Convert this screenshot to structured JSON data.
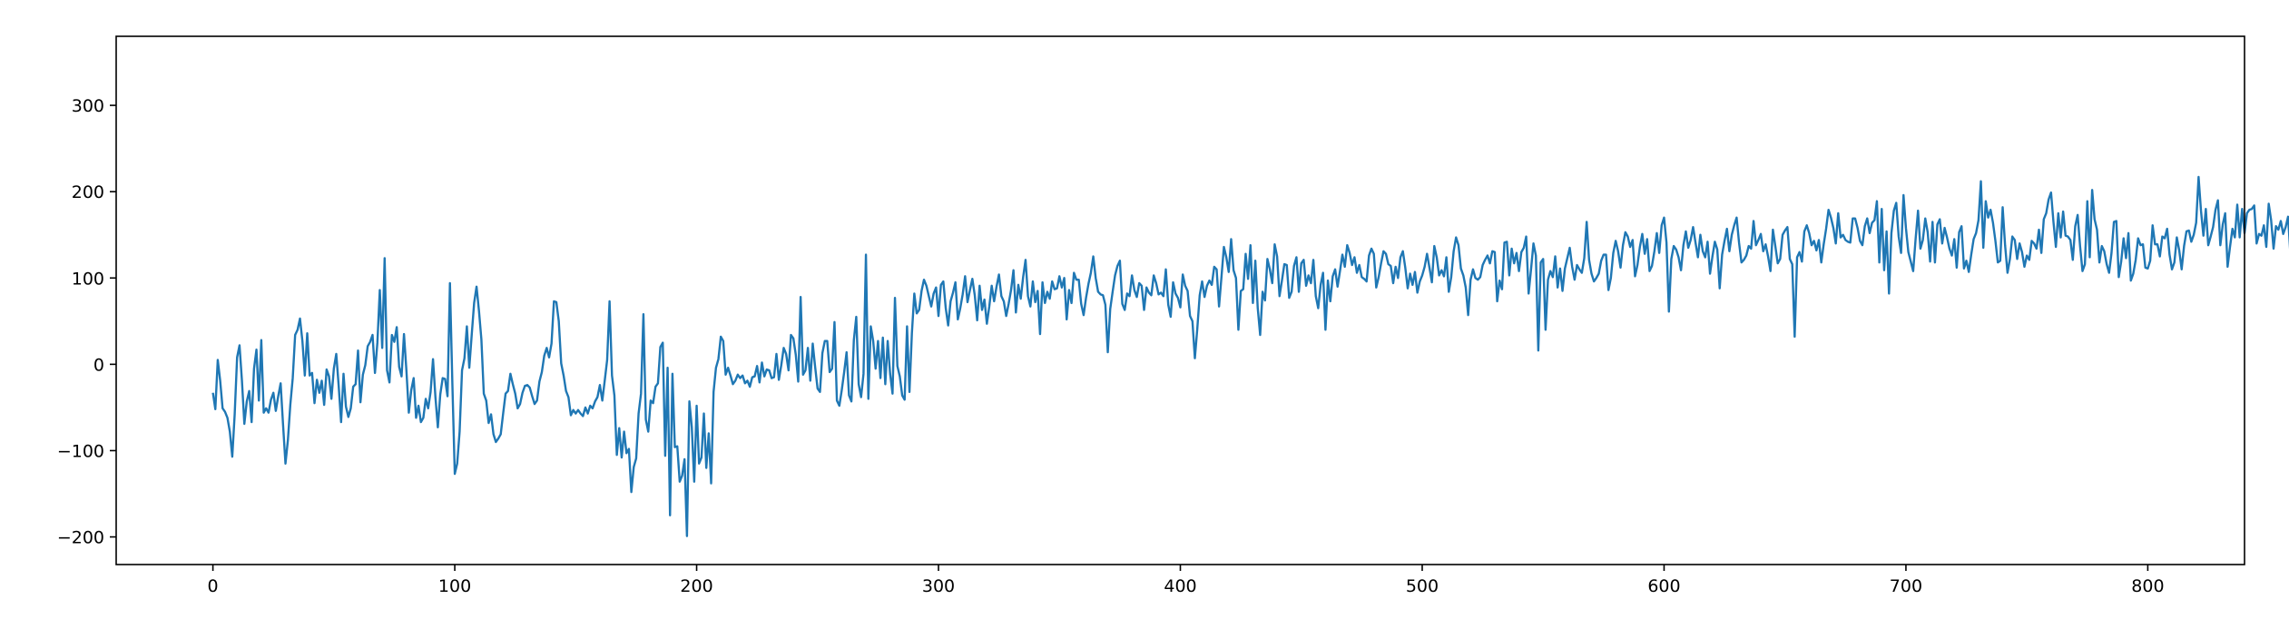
{
  "chart_data": {
    "type": "line",
    "title": "",
    "xlabel": "",
    "ylabel": "",
    "xlim": [
      -40,
      840
    ],
    "ylim": [
      -232,
      380
    ],
    "grid": false,
    "legend": "none",
    "x_ticks": [
      0,
      100,
      200,
      300,
      400,
      500,
      600,
      700,
      800
    ],
    "y_ticks": [
      -200,
      -100,
      0,
      100,
      200,
      300
    ],
    "x_tick_labels": [
      "0",
      "100",
      "200",
      "300",
      "400",
      "500",
      "600",
      "700",
      "800"
    ],
    "y_tick_labels": [
      "−200",
      "−100",
      "0",
      "100",
      "200",
      "300"
    ],
    "series": [
      {
        "color": "#1f77b4",
        "x_start": 0,
        "x_step": 1,
        "values": [
          -33,
          -52,
          5,
          -19,
          -51,
          -55,
          -62,
          -78,
          -107,
          -58,
          8,
          22,
          -19,
          -69,
          -43,
          -31,
          -67,
          -5,
          17,
          -42,
          28,
          -56,
          -51,
          -56,
          -41,
          -33,
          -54,
          -37,
          -22,
          -70,
          -115,
          -88,
          -47,
          -16,
          34,
          40,
          53,
          27,
          -13,
          36,
          -13,
          -10,
          -45,
          -18,
          -33,
          -19,
          -47,
          -6,
          -14,
          -40,
          -5,
          12,
          -25,
          -67,
          -11,
          -49,
          -61,
          -51,
          -26,
          -23,
          16,
          -44,
          -12,
          -1,
          21,
          26,
          34,
          -10,
          25,
          86,
          19,
          123,
          -7,
          -21,
          34,
          26,
          43,
          -3,
          -14,
          35,
          -7,
          -56,
          -30,
          -16,
          -62,
          -48,
          -67,
          -62,
          -40,
          -51,
          -32,
          6,
          -38,
          -73,
          -35,
          -16,
          -17,
          -37,
          94,
          -22,
          -127,
          -115,
          -78,
          -7,
          7,
          44,
          -4,
          34,
          71,
          90,
          62,
          29,
          -34,
          -42,
          -68,
          -58,
          -81,
          -90,
          -86,
          -81,
          -57,
          -34,
          -31,
          -11,
          -23,
          -34,
          -51,
          -46,
          -33,
          -25,
          -24,
          -27,
          -37,
          -46,
          -42,
          -20,
          -9,
          10,
          19,
          8,
          24,
          73,
          72,
          50,
          1,
          -13,
          -31,
          -38,
          -59,
          -53,
          -57,
          -53,
          -57,
          -60,
          -50,
          -57,
          -48,
          -51,
          -43,
          -38,
          -24,
          -42,
          -19,
          5,
          73,
          -13,
          -36,
          -105,
          -74,
          -108,
          -78,
          -103,
          -98,
          -148,
          -119,
          -109,
          -57,
          -34,
          58,
          -64,
          -78,
          -42,
          -45,
          -26,
          -22,
          20,
          25,
          -106,
          -4,
          -175,
          -11,
          -96,
          -95,
          -136,
          -129,
          -110,
          -199,
          -43,
          -73,
          -136,
          -48,
          -115,
          -108,
          -57,
          -120,
          -80,
          -138,
          -32,
          -4,
          6,
          32,
          27,
          -12,
          -4,
          -13,
          -23,
          -19,
          -12,
          -16,
          -13,
          -22,
          -19,
          -26,
          -15,
          -14,
          -2,
          -21,
          2,
          -14,
          -6,
          -7,
          -16,
          -15,
          12,
          -18,
          -1,
          19,
          12,
          -7,
          34,
          30,
          11,
          -20,
          78,
          -12,
          -7,
          19,
          -19,
          24,
          -3,
          -28,
          -32,
          13,
          27,
          27,
          -9,
          -5,
          49,
          -42,
          -48,
          -30,
          -9,
          14,
          -36,
          -43,
          28,
          55,
          -23,
          -38,
          -11,
          127,
          -40,
          44,
          27,
          -5,
          27,
          -16,
          31,
          -23,
          27,
          -11,
          -34,
          77,
          -2,
          -14,
          -36,
          -41,
          44,
          -32,
          36,
          82,
          59,
          63,
          85,
          98,
          91,
          79,
          67,
          82,
          89,
          56,
          92,
          96,
          65,
          45,
          73,
          83,
          95,
          52,
          65,
          81,
          102,
          72,
          86,
          99,
          80,
          51,
          91,
          63,
          75,
          47,
          67,
          91,
          73,
          90,
          104,
          79,
          73,
          56,
          70,
          86,
          109,
          60,
          92,
          76,
          101,
          121,
          79,
          67,
          96,
          72,
          85,
          35,
          95,
          71,
          84,
          76,
          96,
          87,
          88,
          102,
          89,
          100,
          52,
          86,
          71,
          106,
          98,
          98,
          70,
          57,
          77,
          93,
          106,
          125,
          100,
          84,
          81,
          80,
          69,
          14,
          64,
          84,
          103,
          114,
          120,
          70,
          63,
          82,
          79,
          103,
          86,
          78,
          94,
          91,
          63,
          89,
          83,
          80,
          103,
          94,
          81,
          83,
          79,
          110,
          69,
          55,
          95,
          82,
          77,
          66,
          104,
          91,
          85,
          56,
          50,
          7,
          41,
          80,
          96,
          78,
          91,
          97,
          92,
          113,
          110,
          67,
          101,
          136,
          124,
          107,
          145,
          109,
          100,
          40,
          85,
          87,
          128,
          99,
          138,
          71,
          120,
          65,
          34,
          84,
          74,
          122,
          110,
          94,
          139,
          125,
          79,
          97,
          116,
          115,
          77,
          84,
          114,
          124,
          84,
          117,
          121,
          91,
          103,
          94,
          121,
          79,
          65,
          92,
          106,
          40,
          97,
          73,
          102,
          110,
          90,
          108,
          127,
          113,
          138,
          129,
          115,
          124,
          106,
          115,
          101,
          99,
          96,
          126,
          134,
          128,
          89,
          101,
          117,
          131,
          128,
          116,
          114,
          94,
          113,
          100,
          124,
          131,
          112,
          88,
          105,
          92,
          107,
          83,
          96,
          103,
          113,
          128,
          112,
          95,
          137,
          124,
          103,
          109,
          102,
          124,
          84,
          101,
          131,
          147,
          138,
          111,
          103,
          89,
          57,
          98,
          110,
          100,
          98,
          101,
          115,
          121,
          126,
          117,
          131,
          130,
          73,
          97,
          87,
          141,
          142,
          103,
          134,
          117,
          129,
          108,
          130,
          135,
          148,
          82,
          110,
          140,
          126,
          16,
          118,
          122,
          40,
          98,
          108,
          101,
          125,
          89,
          111,
          85,
          111,
          123,
          135,
          113,
          98,
          115,
          110,
          106,
          123,
          165,
          121,
          105,
          96,
          100,
          105,
          120,
          127,
          127,
          86,
          100,
          129,
          143,
          131,
          112,
          138,
          153,
          148,
          136,
          144,
          102,
          115,
          136,
          151,
          128,
          145,
          108,
          114,
          131,
          152,
          129,
          161,
          170,
          141,
          61,
          122,
          137,
          133,
          124,
          109,
          138,
          154,
          135,
          144,
          159,
          141,
          124,
          150,
          131,
          124,
          142,
          105,
          125,
          142,
          133,
          88,
          127,
          143,
          157,
          131,
          150,
          161,
          170,
          141,
          118,
          121,
          126,
          137,
          134,
          166,
          138,
          144,
          151,
          131,
          139,
          125,
          108,
          156,
          137,
          117,
          122,
          150,
          155,
          159,
          122,
          116,
          32,
          124,
          130,
          119,
          154,
          161,
          152,
          138,
          143,
          132,
          144,
          118,
          139,
          157,
          179,
          170,
          158,
          140,
          175,
          147,
          150,
          144,
          142,
          141,
          169,
          169,
          158,
          143,
          138,
          160,
          169,
          152,
          164,
          167,
          189,
          118,
          180,
          109,
          154,
          82,
          152,
          178,
          187,
          148,
          129,
          196,
          158,
          130,
          119,
          108,
          145,
          178,
          134,
          144,
          169,
          153,
          119,
          165,
          118,
          162,
          168,
          140,
          158,
          147,
          134,
          126,
          145,
          112,
          153,
          160,
          111,
          120,
          107,
          127,
          145,
          152,
          167,
          212,
          135,
          189,
          170,
          179,
          164,
          143,
          118,
          120,
          182,
          138,
          106,
          122,
          148,
          144,
          122,
          140,
          130,
          113,
          126,
          121,
          143,
          140,
          134,
          156,
          129,
          168,
          175,
          191,
          199,
          165,
          136,
          175,
          147,
          177,
          149,
          148,
          144,
          121,
          160,
          173,
          137,
          108,
          116,
          189,
          124,
          202,
          168,
          156,
          118,
          137,
          131,
          116,
          106,
          129,
          165,
          166,
          101,
          119,
          146,
          123,
          152,
          97,
          105,
          121,
          146,
          138,
          139,
          112,
          111,
          120,
          161,
          139,
          139,
          125,
          148,
          146,
          157,
          127,
          110,
          118,
          147,
          132,
          110,
          137,
          154,
          155,
          142,
          150,
          164,
          217,
          178,
          149,
          180,
          138,
          148,
          159,
          179,
          190,
          138,
          162,
          175,
          113,
          136,
          157,
          147,
          185,
          147,
          180,
          152,
          175,
          179,
          180,
          184,
          140,
          151,
          149,
          161,
          136,
          186,
          167,
          134,
          160,
          156,
          166,
          151,
          159,
          171,
          126,
          145,
          177,
          164,
          188,
          160,
          154,
          173,
          142,
          146,
          158,
          215,
          149,
          152,
          179,
          138,
          143,
          183,
          157,
          135,
          155,
          173,
          181,
          171,
          178,
          149,
          131,
          159,
          153,
          117,
          133,
          128,
          110,
          125,
          152,
          184,
          231,
          201,
          183,
          177,
          154,
          185,
          142,
          192,
          148,
          175,
          178,
          160,
          141,
          159,
          150,
          172,
          175,
          204,
          220,
          195,
          194,
          236,
          173,
          185,
          178,
          260,
          226,
          214,
          154,
          298,
          208,
          174,
          189,
          152,
          201,
          194,
          201,
          231,
          200,
          195,
          344,
          153,
          205,
          177,
          185,
          246,
          145,
          227,
          249,
          238,
          166,
          170,
          154,
          122,
          155,
          275,
          171,
          156,
          204,
          233,
          230,
          109,
          173,
          177,
          194,
          112,
          128,
          240,
          176,
          99,
          194,
          179,
          221,
          220,
          203,
          214,
          262,
          125,
          178,
          162,
          173,
          144,
          351,
          131,
          218,
          147,
          243,
          183,
          256,
          189,
          142,
          147,
          102,
          213,
          159,
          196,
          200,
          233,
          153,
          116,
          236,
          149,
          120,
          224,
          178,
          152,
          206,
          199,
          195,
          188,
          108,
          104,
          136,
          123,
          165,
          188,
          133,
          166,
          284,
          203,
          173,
          149,
          160,
          206,
          183,
          164,
          253,
          158,
          188,
          205,
          150,
          209,
          190,
          203,
          96,
          80,
          144,
          212,
          170,
          177,
          215,
          154,
          209,
          182,
          153,
          111,
          184,
          123,
          155,
          181,
          173,
          102,
          194,
          168,
          141,
          159,
          150,
          128,
          261,
          185,
          172,
          127,
          153,
          203,
          146,
          121,
          200,
          189,
          161,
          142,
          160,
          203,
          179,
          216,
          154,
          181,
          193,
          174,
          202,
          163,
          212,
          168,
          177,
          98,
          144,
          146,
          188,
          203,
          192,
          234,
          183,
          163,
          157,
          187,
          224,
          213,
          232,
          220,
          241,
          162,
          209,
          169,
          175,
          184,
          184,
          248,
          152,
          207,
          182,
          137,
          137,
          165,
          172,
          161,
          182,
          191,
          179,
          135,
          176,
          219,
          183,
          194,
          156,
          212,
          179,
          196,
          137,
          182,
          191,
          142,
          163,
          223,
          174,
          211,
          168,
          185,
          166,
          204,
          179,
          136,
          140,
          187,
          162,
          125,
          191,
          181,
          189,
          158,
          188
        ]
      }
    ]
  }
}
